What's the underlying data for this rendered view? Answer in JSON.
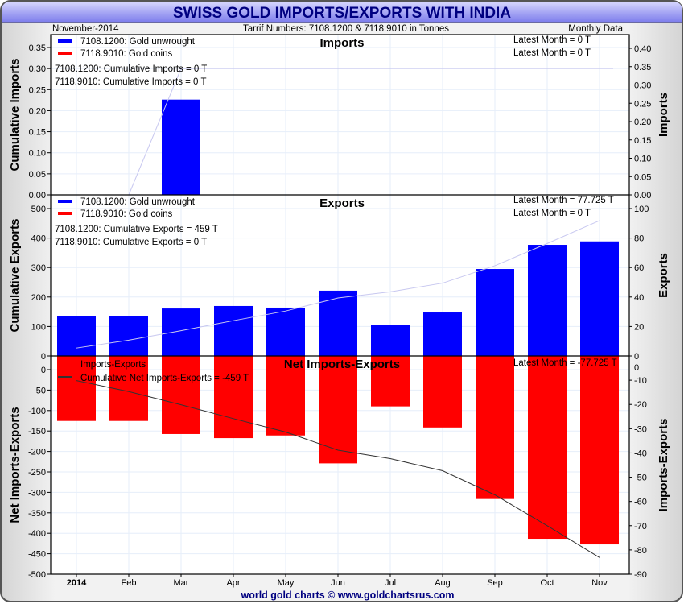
{
  "header": {
    "title": "SWISS GOLD IMPORTS/EXPORTS WITH INDIA",
    "date": "November-2014",
    "subtitle": "Tarrif Numbers: 7108.1200 & 7118.9010 in Tonnes",
    "frequency": "Monthly Data",
    "footer": "world gold charts © www.goldchartsrus.com"
  },
  "colors": {
    "gold_unwrought": "#0000ff",
    "gold_coins": "#ff0000",
    "net": "#ff0000",
    "cumulative_net": "#333333",
    "cumulative_light": "#c8c8f0",
    "title_text": "#000080"
  },
  "chart_data": [
    {
      "type": "bar",
      "title": "Imports",
      "categories": [
        "2014",
        "Feb",
        "Mar",
        "Apr",
        "May",
        "Jun",
        "Jul",
        "Aug",
        "Sep",
        "Oct",
        "Nov"
      ],
      "ylabel": "Imports",
      "ylabel_left": "Cumulative Imports",
      "ylim_left": [
        0,
        0.35
      ],
      "ylim_right": [
        0,
        0.4
      ],
      "ticks_left": [
        "0.00",
        "0.05",
        "0.10",
        "0.15",
        "0.20",
        "0.25",
        "0.30",
        "0.35"
      ],
      "ticks_right": [
        "0.00",
        "0.05",
        "0.10",
        "0.15",
        "0.20",
        "0.25",
        "0.30",
        "0.35",
        "0.40"
      ],
      "legend": [
        "7108.1200: Gold unwrought",
        "7118.9010: Gold coins"
      ],
      "annotations": [
        "7108.1200: Cumulative Imports = 0 T",
        "7118.9010: Cumulative Imports = 0 T",
        "Latest Month = 0 T",
        "Latest Month = 0 T"
      ],
      "series": [
        {
          "name": "7108.1200: Gold unwrought",
          "values": [
            0,
            0,
            0.26,
            0,
            0,
            0,
            0,
            0,
            0,
            0,
            0
          ]
        },
        {
          "name": "7118.9010: Gold coins",
          "values": [
            0,
            0,
            0,
            0,
            0,
            0,
            0,
            0,
            0,
            0,
            0
          ]
        }
      ],
      "cumulative": [
        0,
        0,
        0.3,
        0.3,
        0.3,
        0.3,
        0.3,
        0.3,
        0.3,
        0.3,
        0.3
      ]
    },
    {
      "type": "bar",
      "title": "Exports",
      "categories": [
        "2014",
        "Feb",
        "Mar",
        "Apr",
        "May",
        "Jun",
        "Jul",
        "Aug",
        "Sep",
        "Oct",
        "Nov"
      ],
      "ylabel": "Exports",
      "ylabel_left": "Cumulative Exports",
      "ylim_left": [
        0,
        500
      ],
      "ylim_right": [
        0,
        100
      ],
      "ticks_left": [
        "0",
        "100",
        "200",
        "300",
        "400",
        "500"
      ],
      "ticks_right": [
        "0",
        "20",
        "40",
        "60",
        "80",
        "100"
      ],
      "legend": [
        "7108.1200: Gold unwrought",
        "7118.9010: Gold coins"
      ],
      "annotations": [
        "7108.1200: Cumulative Exports = 459 T",
        "7118.9010: Cumulative Exports = 0 T",
        "Latest Month = 77.725 T",
        "Latest Month = 0 T"
      ],
      "series": [
        {
          "name": "7108.1200: Gold unwrought",
          "values": [
            26.8,
            26.8,
            32.2,
            33.9,
            32.8,
            44.3,
            20.8,
            29.5,
            59.0,
            75.4,
            77.725
          ]
        },
        {
          "name": "7118.9010: Gold coins",
          "values": [
            0,
            0,
            0,
            0,
            0,
            0,
            0,
            0,
            0,
            0,
            0
          ]
        }
      ],
      "cumulative": [
        26.8,
        53.6,
        85.8,
        119.7,
        152.5,
        196.8,
        217.6,
        247.1,
        306.1,
        381.5,
        459.2
      ]
    },
    {
      "type": "bar",
      "title": "Net Imports-Exports",
      "categories": [
        "2014",
        "Feb",
        "Mar",
        "Apr",
        "May",
        "Jun",
        "Jul",
        "Aug",
        "Sep",
        "Oct",
        "Nov"
      ],
      "ylabel": "Imports-Exports",
      "ylabel_left": "Net Imports-Exports",
      "ylim_left": [
        -500,
        0
      ],
      "ylim_right": [
        -90,
        0
      ],
      "ticks_left": [
        "0",
        "-50",
        "-100",
        "-150",
        "-200",
        "-250",
        "-300",
        "-350",
        "-400",
        "-450",
        "-500"
      ],
      "ticks_right": [
        "0",
        "-10",
        "-20",
        "-30",
        "-40",
        "-50",
        "-60",
        "-70",
        "-80",
        "-90"
      ],
      "legend": [
        "Imports-Exports",
        "Cumulative Net Imports-Exports = -459 T"
      ],
      "annotations": [
        "Latest Month = -77.725 T"
      ],
      "series": [
        {
          "name": "Imports-Exports",
          "values": [
            -26.8,
            -26.8,
            -32.2,
            -33.9,
            -32.8,
            -44.3,
            -20.8,
            -29.5,
            -59.0,
            -75.4,
            -77.725
          ]
        }
      ],
      "cumulative": [
        -26.8,
        -53.6,
        -85.8,
        -119.7,
        -152.5,
        -196.8,
        -217.6,
        -247.1,
        -306.1,
        -381.5,
        -459.2
      ]
    }
  ]
}
